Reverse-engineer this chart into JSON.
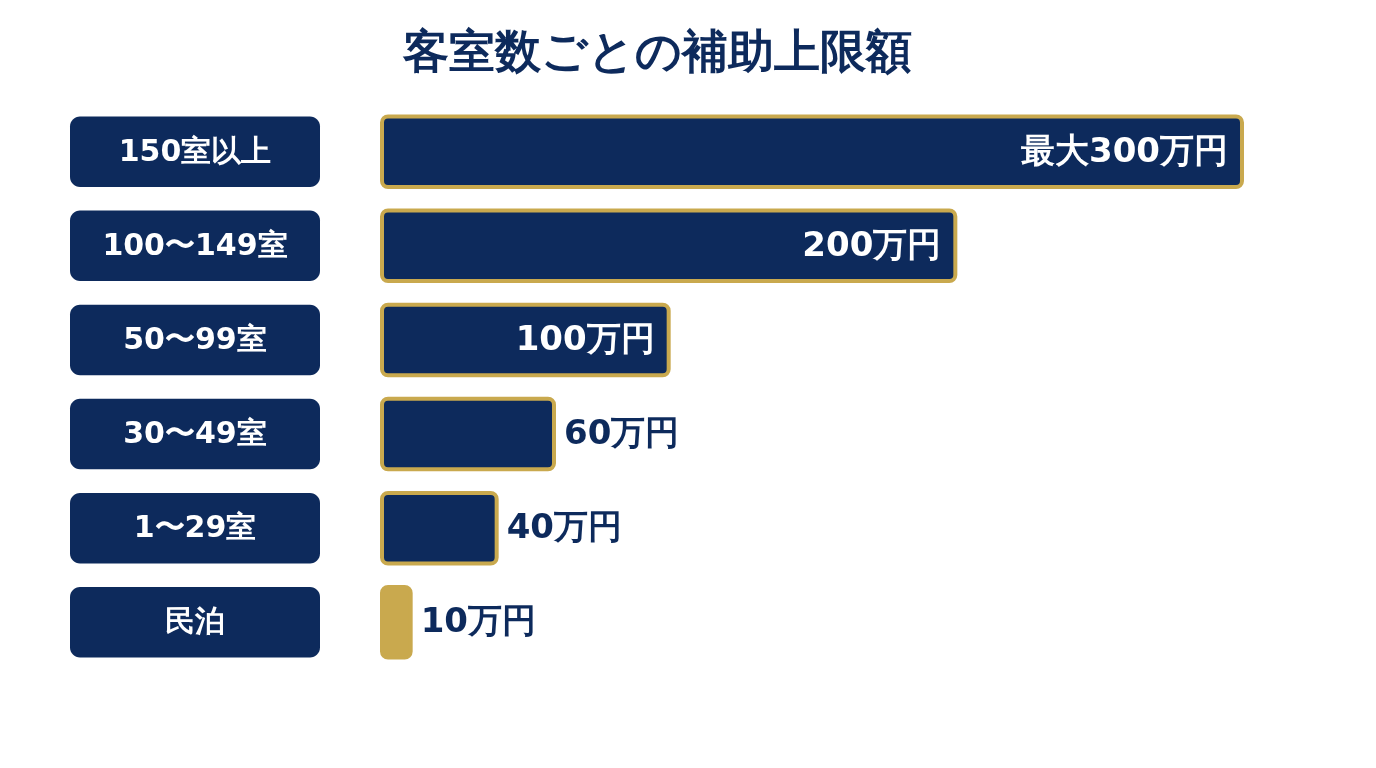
{
  "chart_data": {
    "type": "bar",
    "orientation": "horizontal",
    "title": "客室数ごとの補助上限額",
    "categories": [
      "150室以上",
      "100〜149室",
      "50〜99室",
      "30〜49室",
      "1〜29室",
      "民泊"
    ],
    "values": [
      300,
      200,
      100,
      60,
      40,
      10
    ],
    "value_labels": [
      "最大300万円",
      "200万円",
      "100万円",
      "60万円",
      "40万円",
      "10万円"
    ],
    "colors": [
      "#0d2a5c",
      "#0d2a5c",
      "#0d2a5c",
      "#0d2a5c",
      "#0d2a5c",
      "#c9a94e"
    ],
    "stacked": false
  }
}
